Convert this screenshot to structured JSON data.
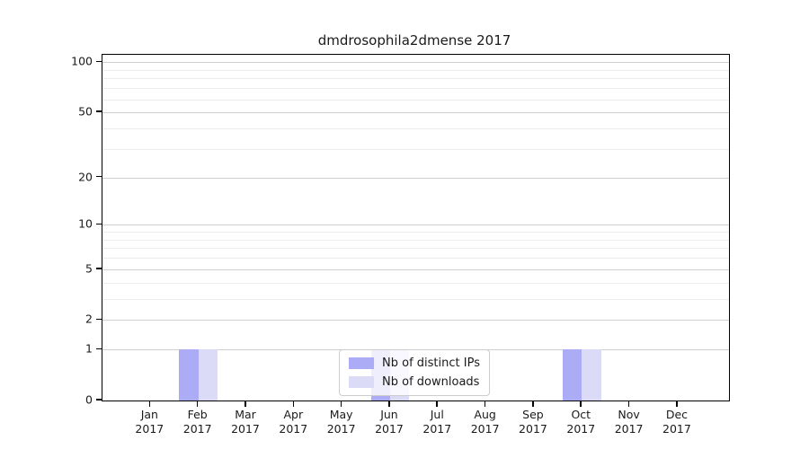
{
  "figure": {
    "title": "dmdrosophila2dmense 2017"
  },
  "chart_data": {
    "type": "bar",
    "title": "dmdrosophila2dmense 2017",
    "x_tick_months": [
      "Jan",
      "Feb",
      "Mar",
      "Apr",
      "May",
      "Jun",
      "Jul",
      "Aug",
      "Sep",
      "Oct",
      "Nov",
      "Dec"
    ],
    "x_tick_year": "2017",
    "series": [
      {
        "name": "Nb of distinct IPs",
        "color": "#abacf5",
        "values": [
          0,
          1,
          0,
          0,
          0,
          1,
          0,
          0,
          0,
          1,
          0,
          0
        ]
      },
      {
        "name": "Nb of downloads",
        "color": "#dbdbf7",
        "values": [
          0,
          1,
          0,
          0,
          0,
          1,
          0,
          0,
          0,
          1,
          0,
          0
        ]
      }
    ],
    "yticks": [
      0,
      1,
      2,
      5,
      10,
      20,
      50,
      100
    ],
    "minor_yticks": [
      3,
      4,
      6,
      7,
      8,
      9,
      30,
      40,
      60,
      70,
      80,
      90
    ],
    "yscale": "log1p",
    "ylim": [
      0,
      111
    ],
    "grid": true,
    "legend": {
      "position": "lower center",
      "items": [
        "Nb of distinct IPs",
        "Nb of downloads"
      ]
    }
  }
}
